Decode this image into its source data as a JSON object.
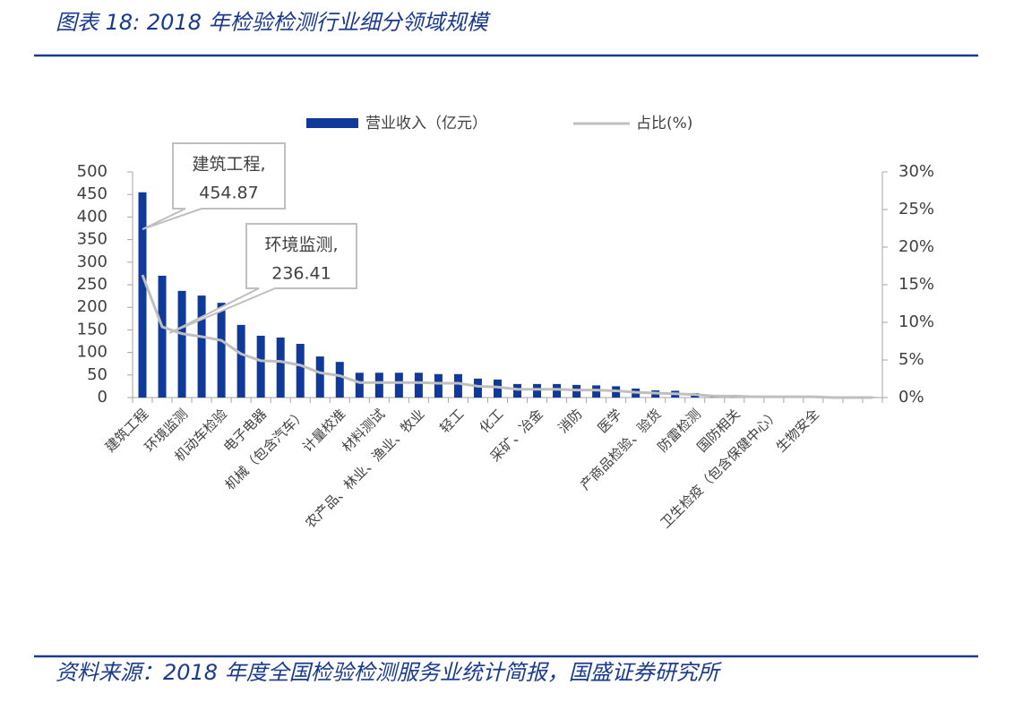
{
  "chart_data": {
    "type": "bar-line",
    "title": "图表 18: 2018 年检验检测行业细分领域规模",
    "source": "资料来源：2018 年度全国检验检测服务业统计简报，国盛证券研究所",
    "categories": [
      "建筑工程",
      null,
      "环境监测",
      null,
      "机动车检验",
      null,
      "电子电器",
      null,
      "机械（包含汽车）",
      null,
      "计量校准",
      null,
      "材料测试",
      null,
      "农产品、林业、渔业、牧业",
      null,
      "轻工",
      null,
      "化工",
      null,
      "采矿、冶金",
      null,
      "消防",
      null,
      "医学",
      null,
      "产商品检验、验货",
      null,
      "防雷检测",
      null,
      "国防相关",
      null,
      "卫生检疫（包含保健中心）",
      null,
      "生物安全",
      null,
      null,
      null
    ],
    "series": [
      {
        "name": "营业收入（亿元）",
        "color": "#0f3a9c",
        "values": [
          454.87,
          270,
          236.41,
          226,
          210,
          161,
          137,
          133,
          119,
          91,
          79,
          55,
          55,
          55,
          55,
          52,
          52,
          42,
          40,
          30,
          30,
          30,
          28,
          27,
          25,
          20,
          16,
          15,
          10,
          6,
          5,
          4,
          3,
          3,
          2,
          1,
          1,
          0.5
        ]
      },
      {
        "name": "占比(%)",
        "color": "#bfbfbf",
        "axis": "y2",
        "values": [
          16.3,
          9.4,
          8.5,
          8.1,
          7.6,
          5.8,
          4.9,
          4.8,
          4.3,
          3.3,
          2.9,
          2.0,
          2.0,
          2.0,
          2.0,
          1.9,
          1.9,
          1.5,
          1.4,
          1.1,
          1.1,
          1.1,
          1.0,
          1.0,
          0.9,
          0.7,
          0.6,
          0.5,
          0.4,
          0.2,
          0.2,
          0.1,
          0.1,
          0.1,
          0.1,
          0,
          0,
          0
        ]
      }
    ],
    "ylim": [
      0,
      500
    ],
    "yticks": [
      0,
      50,
      100,
      150,
      200,
      250,
      300,
      350,
      400,
      450,
      500
    ],
    "y2lim": [
      0,
      30
    ],
    "y2ticks": [
      {
        "value": 0,
        "label": "0%"
      },
      {
        "value": 5,
        "label": "5%"
      },
      {
        "value": 10,
        "label": "10%"
      },
      {
        "value": 15,
        "label": "15%"
      },
      {
        "value": 20,
        "label": "20%"
      },
      {
        "value": 25,
        "label": "25%"
      },
      {
        "value": 30,
        "label": "30%"
      }
    ],
    "annotations": [
      "建筑工程,",
      "环境监测,"
    ],
    "grid": false
  }
}
